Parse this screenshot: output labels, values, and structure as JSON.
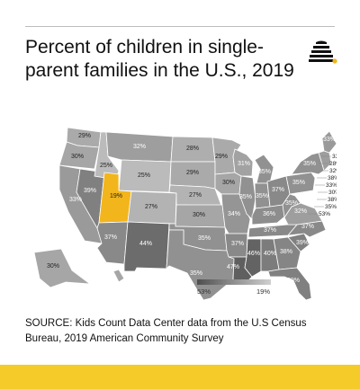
{
  "title": "Percent of children in single-parent families in the U.S., 2019",
  "source": "SOURCE: Kids Count Data Center data from the U.S Census Bureau, 2019 American Community Survey",
  "legend": {
    "min_label": "53%",
    "max_label": "19%"
  },
  "colors": {
    "highlight": "#f2b51c",
    "accent_bar": "#f5cb2a",
    "logo": "#111111",
    "logo_dot": "#f2b51c"
  },
  "states": [
    {
      "id": "WA",
      "label": "29%",
      "value": 29
    },
    {
      "id": "OR",
      "label": "30%",
      "value": 30
    },
    {
      "id": "CA",
      "label": "33%",
      "value": 33
    },
    {
      "id": "NV",
      "label": "39%",
      "value": 39
    },
    {
      "id": "ID",
      "label": "25%",
      "value": 25
    },
    {
      "id": "MT",
      "label": "32%",
      "value": 32
    },
    {
      "id": "WY",
      "label": "25%",
      "value": 25
    },
    {
      "id": "UT",
      "label": "19%",
      "value": 19,
      "highlight": true
    },
    {
      "id": "AZ",
      "label": "37%",
      "value": 37
    },
    {
      "id": "CO",
      "label": "27%",
      "value": 27
    },
    {
      "id": "NM",
      "label": "44%",
      "value": 44
    },
    {
      "id": "ND",
      "label": "28%",
      "value": 28
    },
    {
      "id": "SD",
      "label": "29%",
      "value": 29
    },
    {
      "id": "NE",
      "label": "27%",
      "value": 27
    },
    {
      "id": "KS",
      "label": "30%",
      "value": 30
    },
    {
      "id": "OK",
      "label": "35%",
      "value": 35
    },
    {
      "id": "TX",
      "label": "35%",
      "value": 35
    },
    {
      "id": "MN",
      "label": "29%",
      "value": 29
    },
    {
      "id": "IA",
      "label": "30%",
      "value": 30
    },
    {
      "id": "MO",
      "label": "34%",
      "value": 34
    },
    {
      "id": "AR",
      "label": "37%",
      "value": 37
    },
    {
      "id": "LA",
      "label": "47%",
      "value": 47
    },
    {
      "id": "WI",
      "label": "31%",
      "value": 31
    },
    {
      "id": "IL",
      "label": "35%",
      "value": 35
    },
    {
      "id": "MI",
      "label": "35%",
      "value": 35
    },
    {
      "id": "IN",
      "label": "35%",
      "value": 35
    },
    {
      "id": "OH",
      "label": "37%",
      "value": 37
    },
    {
      "id": "KY",
      "label": "36%",
      "value": 36
    },
    {
      "id": "TN",
      "label": "37%",
      "value": 37
    },
    {
      "id": "MS",
      "label": "46%",
      "value": 46
    },
    {
      "id": "AL",
      "label": "40%",
      "value": 40
    },
    {
      "id": "GA",
      "label": "38%",
      "value": 38
    },
    {
      "id": "FL",
      "label": "39%",
      "value": 39
    },
    {
      "id": "SC",
      "label": "39%",
      "value": 39
    },
    {
      "id": "NC",
      "label": "37%",
      "value": 37
    },
    {
      "id": "VA",
      "label": "32%",
      "value": 32
    },
    {
      "id": "WV",
      "label": "35%",
      "value": 35
    },
    {
      "id": "PA",
      "label": "35%",
      "value": 35
    },
    {
      "id": "NY",
      "label": "35%",
      "value": 35
    },
    {
      "id": "ME",
      "label": "33%",
      "value": 33
    },
    {
      "id": "AK",
      "label": "30%",
      "value": 30
    },
    {
      "id": "HI",
      "label": "",
      "value": 30
    }
  ],
  "callouts": [
    {
      "id": "NH",
      "label": "33%",
      "value": 33
    },
    {
      "id": "VT",
      "label": "28%",
      "value": 28
    },
    {
      "id": "MA",
      "label": "32%",
      "value": 32
    },
    {
      "id": "RI",
      "label": "38%",
      "value": 38
    },
    {
      "id": "CT",
      "label": "33%",
      "value": 33
    },
    {
      "id": "NJ",
      "label": "30%",
      "value": 30
    },
    {
      "id": "DE",
      "label": "38%",
      "value": 38
    },
    {
      "id": "MD",
      "label": "35%",
      "value": 35
    },
    {
      "id": "DC",
      "label": "53%",
      "value": 53
    }
  ]
}
